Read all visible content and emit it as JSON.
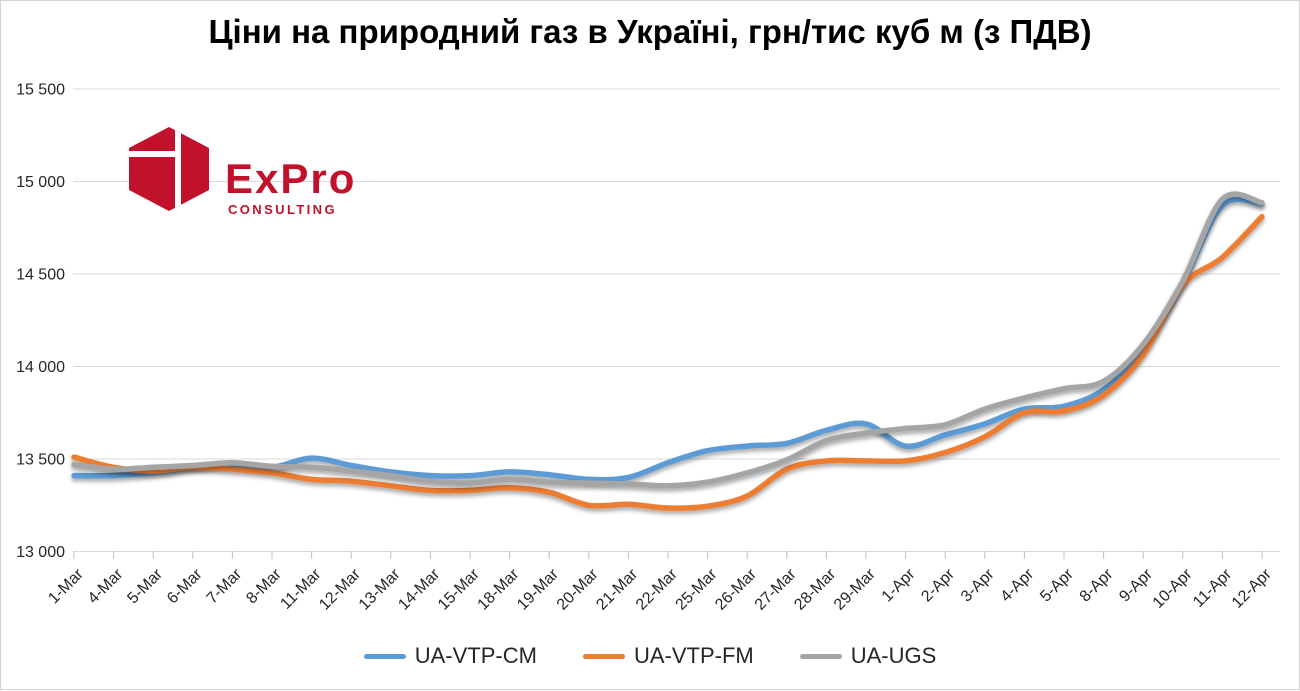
{
  "page": {
    "background": "#ffffff",
    "border_color": "#d4d4d4"
  },
  "header": {
    "title": "Ціни на природний газ в Україні, грн/тис куб м (з ПДВ)"
  },
  "logo": {
    "brand": "ExPro",
    "subtitle": "CONSULTING",
    "color": "#c2112b"
  },
  "chart_data": {
    "type": "line",
    "title": "Ціни на природний газ в Україні, грн/тис куб м (з ПДВ)",
    "categories": [
      "1-Mar",
      "4-Mar",
      "5-Mar",
      "6-Mar",
      "7-Mar",
      "8-Mar",
      "11-Mar",
      "12-Mar",
      "13-Mar",
      "14-Mar",
      "15-Mar",
      "18-Mar",
      "19-Mar",
      "20-Mar",
      "21-Mar",
      "22-Mar",
      "25-Mar",
      "26-Mar",
      "27-Mar",
      "28-Mar",
      "29-Mar",
      "1-Apr",
      "2-Apr",
      "3-Apr",
      "4-Apr",
      "5-Apr",
      "8-Apr",
      "9-Apr",
      "10-Apr",
      "11-Apr",
      "12-Apr"
    ],
    "series": [
      {
        "name": "UA-VTP-CM",
        "color": "#5B9BD5",
        "values": [
          13410,
          13410,
          13425,
          13455,
          13470,
          13455,
          13505,
          13465,
          13430,
          13410,
          13410,
          13430,
          13415,
          13390,
          13400,
          13480,
          13545,
          13570,
          13585,
          13655,
          13690,
          13570,
          13630,
          13690,
          13770,
          13785,
          13875,
          14090,
          14450,
          14870,
          14880
        ]
      },
      {
        "name": "UA-VTP-FM",
        "color": "#ED7D31",
        "values": [
          13510,
          13455,
          13435,
          13455,
          13445,
          13425,
          13390,
          13380,
          13355,
          13330,
          13330,
          13345,
          13320,
          13250,
          13255,
          13235,
          13245,
          13300,
          13445,
          13490,
          13490,
          13490,
          13535,
          13620,
          13750,
          13760,
          13845,
          14065,
          14440,
          14590,
          14810
        ]
      },
      {
        "name": "UA-UGS",
        "color": "#A5A5A5",
        "values": [
          13470,
          13445,
          13455,
          13465,
          13480,
          13460,
          13455,
          13435,
          13410,
          13380,
          13370,
          13390,
          13375,
          13370,
          13365,
          13355,
          13375,
          13425,
          13495,
          13600,
          13640,
          13665,
          13685,
          13770,
          13830,
          13880,
          13920,
          14120,
          14460,
          14905,
          14885
        ]
      }
    ],
    "ylim": [
      13000,
      15500
    ],
    "ytick_step": 500,
    "ytick_labels": [
      "13 000",
      "13 500",
      "14 000",
      "14 500",
      "15 000",
      "15 500"
    ],
    "grid": true,
    "legend_position": "bottom",
    "gridline_color": "#D9D9D9",
    "tick_color": "#BFBFBF",
    "axis_label_color": "#262626"
  }
}
